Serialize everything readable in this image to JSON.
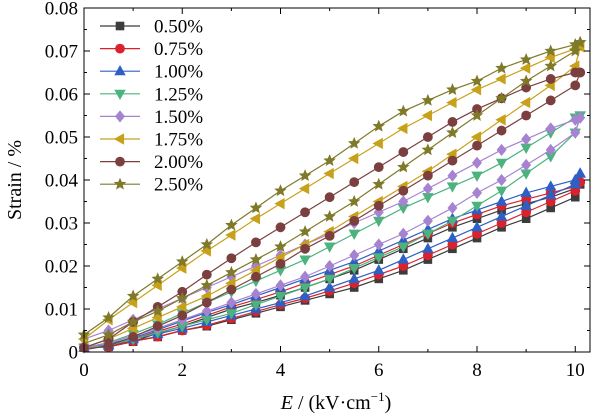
{
  "chart_data": {
    "type": "line",
    "xlabel": {
      "var": "E",
      "rest": " / (kV·cm",
      "sup": "−1",
      "close": ")"
    },
    "ylabel": "Strain / %",
    "xlim": [
      0,
      10.3
    ],
    "ylim": [
      0,
      0.08
    ],
    "xticks": [
      "0",
      "2",
      "4",
      "6",
      "8",
      "10"
    ],
    "yticks": [
      "0",
      "0.01",
      "0.02",
      "0.03",
      "0.04",
      "0.05",
      "0.06",
      "0.07",
      "0.08"
    ],
    "legend_position": "top-left",
    "grid": false,
    "x": [
      0,
      0.5,
      1,
      1.5,
      2,
      2.5,
      3,
      3.5,
      4,
      4.5,
      5,
      5.5,
      6,
      6.5,
      7,
      7.5,
      8,
      8.5,
      9,
      9.5,
      10,
      10.1
    ],
    "series": [
      {
        "name": "0.50%",
        "color": "#3c3c3c",
        "marker": "square",
        "up": [
          0.001,
          0.0012,
          0.0024,
          0.0044,
          0.006,
          0.008,
          0.01,
          0.0115,
          0.0132,
          0.015,
          0.017,
          0.019,
          0.0215,
          0.024,
          0.0265,
          0.029,
          0.031,
          0.033,
          0.0345,
          0.036,
          0.038,
          0.039
        ],
        "down": [
          0.001,
          0.0015,
          0.0025,
          0.0035,
          0.005,
          0.006,
          0.0075,
          0.009,
          0.0105,
          0.012,
          0.0135,
          0.015,
          0.017,
          0.019,
          0.0215,
          0.024,
          0.0265,
          0.029,
          0.031,
          0.0335,
          0.036,
          0.039
        ]
      },
      {
        "name": "0.75%",
        "color": "#d9222d",
        "marker": "circle",
        "up": [
          0.001,
          0.0015,
          0.003,
          0.0048,
          0.0065,
          0.0085,
          0.0105,
          0.0122,
          0.014,
          0.016,
          0.018,
          0.02,
          0.0225,
          0.025,
          0.0275,
          0.03,
          0.032,
          0.034,
          0.0355,
          0.037,
          0.0385,
          0.0395
        ],
        "down": [
          0.001,
          0.0012,
          0.0025,
          0.0036,
          0.005,
          0.0062,
          0.0078,
          0.0094,
          0.011,
          0.0125,
          0.0142,
          0.016,
          0.018,
          0.02,
          0.0225,
          0.025,
          0.0275,
          0.03,
          0.0325,
          0.035,
          0.0375,
          0.0395
        ]
      },
      {
        "name": "1.00%",
        "color": "#2e5fc4",
        "marker": "triangle-up",
        "up": [
          0.001,
          0.0018,
          0.0033,
          0.0052,
          0.0072,
          0.0092,
          0.011,
          0.013,
          0.015,
          0.017,
          0.019,
          0.021,
          0.0235,
          0.026,
          0.0285,
          0.031,
          0.033,
          0.035,
          0.037,
          0.0385,
          0.04,
          0.0415
        ],
        "down": [
          0.001,
          0.0015,
          0.003,
          0.0042,
          0.0055,
          0.007,
          0.0085,
          0.01,
          0.0115,
          0.013,
          0.015,
          0.017,
          0.019,
          0.0215,
          0.024,
          0.0265,
          0.029,
          0.0315,
          0.034,
          0.0365,
          0.039,
          0.0415
        ]
      },
      {
        "name": "1.25%",
        "color": "#4cb37f",
        "marker": "triangle-down",
        "up": [
          0.001,
          0.0022,
          0.0042,
          0.0064,
          0.009,
          0.0115,
          0.014,
          0.0165,
          0.019,
          0.0215,
          0.0245,
          0.0275,
          0.0305,
          0.0335,
          0.036,
          0.0385,
          0.041,
          0.044,
          0.0475,
          0.051,
          0.0545,
          0.055
        ],
        "down": [
          0.001,
          0.0015,
          0.003,
          0.0045,
          0.006,
          0.0075,
          0.009,
          0.011,
          0.013,
          0.015,
          0.017,
          0.0195,
          0.022,
          0.0245,
          0.0275,
          0.0305,
          0.034,
          0.0375,
          0.0415,
          0.0455,
          0.051,
          0.055
        ]
      },
      {
        "name": "1.50%",
        "color": "#a683d0",
        "marker": "diamond",
        "up": [
          0.003,
          0.005,
          0.0075,
          0.01,
          0.0125,
          0.015,
          0.0175,
          0.02,
          0.0225,
          0.025,
          0.0275,
          0.03,
          0.0325,
          0.035,
          0.038,
          0.041,
          0.044,
          0.047,
          0.0495,
          0.052,
          0.054,
          0.0545
        ],
        "down": [
          0.001,
          0.002,
          0.0038,
          0.0055,
          0.0075,
          0.0095,
          0.0115,
          0.0135,
          0.0155,
          0.0175,
          0.02,
          0.0225,
          0.025,
          0.0275,
          0.0305,
          0.0335,
          0.037,
          0.04,
          0.0435,
          0.047,
          0.051,
          0.0545
        ]
      },
      {
        "name": "1.75%",
        "color": "#c8a11a",
        "marker": "triangle-left",
        "up": [
          0.003,
          0.0075,
          0.0115,
          0.0155,
          0.0195,
          0.0235,
          0.0272,
          0.031,
          0.0345,
          0.038,
          0.0415,
          0.045,
          0.0485,
          0.052,
          0.055,
          0.058,
          0.061,
          0.0635,
          0.066,
          0.0685,
          0.0705,
          0.071
        ],
        "down": [
          0.001,
          0.003,
          0.0055,
          0.008,
          0.0105,
          0.013,
          0.016,
          0.019,
          0.022,
          0.025,
          0.028,
          0.0315,
          0.035,
          0.0385,
          0.042,
          0.046,
          0.05,
          0.054,
          0.058,
          0.062,
          0.0665,
          0.071
        ]
      },
      {
        "name": "2.00%",
        "color": "#7b3f3f",
        "marker": "circle",
        "up": [
          0.001,
          0.003,
          0.007,
          0.0105,
          0.014,
          0.018,
          0.0218,
          0.0255,
          0.029,
          0.0325,
          0.036,
          0.0395,
          0.043,
          0.0465,
          0.05,
          0.0535,
          0.0565,
          0.059,
          0.0615,
          0.0635,
          0.065,
          0.065
        ],
        "down": [
          0.0005,
          0.0015,
          0.0035,
          0.006,
          0.0085,
          0.0115,
          0.0145,
          0.0175,
          0.0205,
          0.024,
          0.027,
          0.0305,
          0.034,
          0.0375,
          0.041,
          0.0445,
          0.048,
          0.0515,
          0.055,
          0.0585,
          0.062,
          0.065
        ]
      },
      {
        "name": "2.50%",
        "color": "#7f7a2a",
        "marker": "star",
        "up": [
          0.004,
          0.008,
          0.013,
          0.017,
          0.021,
          0.025,
          0.0295,
          0.0335,
          0.0375,
          0.041,
          0.0445,
          0.0485,
          0.0525,
          0.056,
          0.0585,
          0.061,
          0.063,
          0.066,
          0.068,
          0.07,
          0.0715,
          0.072
        ],
        "down": [
          0.002,
          0.004,
          0.007,
          0.0095,
          0.0125,
          0.0155,
          0.0185,
          0.0215,
          0.0245,
          0.028,
          0.0315,
          0.035,
          0.039,
          0.043,
          0.047,
          0.051,
          0.055,
          0.059,
          0.063,
          0.0665,
          0.07,
          0.072
        ]
      }
    ]
  }
}
